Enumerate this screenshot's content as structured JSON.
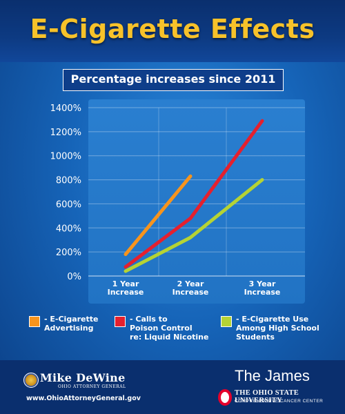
{
  "title": "E-Cigarette Effects",
  "chart_data": {
    "type": "line",
    "title": "Percentage increases since 2011",
    "categories": [
      "1 Year\nIncrease",
      "2 Year\nIncrease",
      "3 Year\nIncrease"
    ],
    "y_ticks": [
      "0%",
      "200%",
      "400%",
      "600%",
      "800%",
      "1000%",
      "1200%",
      "1400%"
    ],
    "ylim": [
      0,
      1400
    ],
    "grid": true,
    "legend_position": "bottom",
    "series": [
      {
        "name": "- E-Cigarette\nAdvertising",
        "color": "#f7941d",
        "values": [
          180,
          830,
          null
        ]
      },
      {
        "name": "- Calls to\nPoison Control\nre: Liquid Nicotine",
        "color": "#e5202e",
        "values": [
          75,
          480,
          1290
        ]
      },
      {
        "name": "- E-Cigarette Use\nAmong High School\nStudents",
        "color": "#b5d334",
        "values": [
          40,
          320,
          800
        ]
      }
    ]
  },
  "footer": {
    "ag_name": "Mike DeWine",
    "ag_title": "OHIO ATTORNEY GENERAL",
    "website": "www.OhioAttorneyGeneral.gov",
    "hospital": "The James",
    "university": "THE OHIO STATE UNIVERSITY",
    "center": "COMPREHENSIVE CANCER CENTER"
  }
}
